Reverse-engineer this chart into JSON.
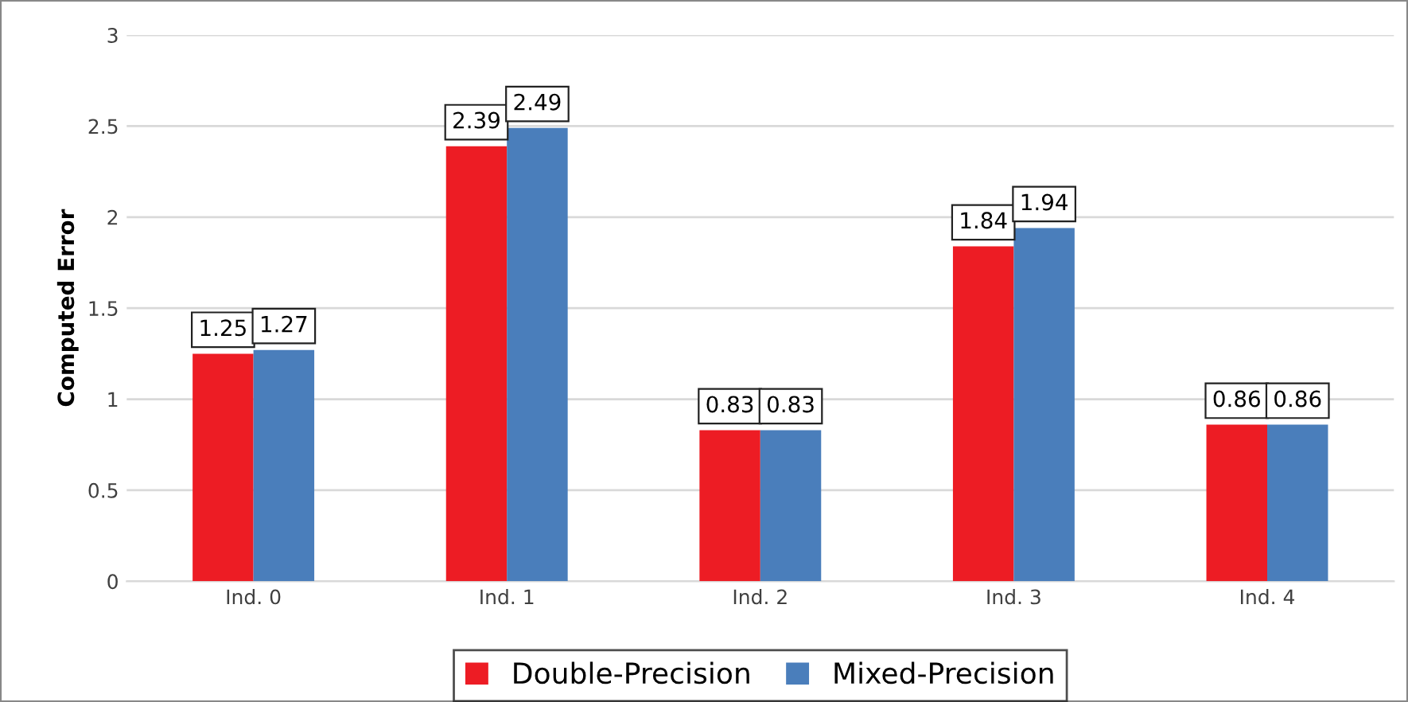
{
  "chart_data": {
    "type": "bar",
    "ylabel": "Computed Error",
    "categories": [
      "Ind. 0",
      "Ind. 1",
      "Ind. 2",
      "Ind. 3",
      "Ind. 4"
    ],
    "series": [
      {
        "name": "Double-Precision",
        "color": "#ed1c24",
        "values": [
          1.25,
          2.39,
          0.83,
          1.84,
          0.86
        ]
      },
      {
        "name": "Mixed-Precision",
        "color": "#4a7ebb",
        "values": [
          1.27,
          2.49,
          0.83,
          1.94,
          0.86
        ]
      }
    ],
    "ylim": [
      0,
      3
    ],
    "yticks": [
      0,
      0.5,
      1,
      1.5,
      2,
      2.5,
      3
    ],
    "grid": "y",
    "legend": "bottom",
    "data_labels": true
  }
}
